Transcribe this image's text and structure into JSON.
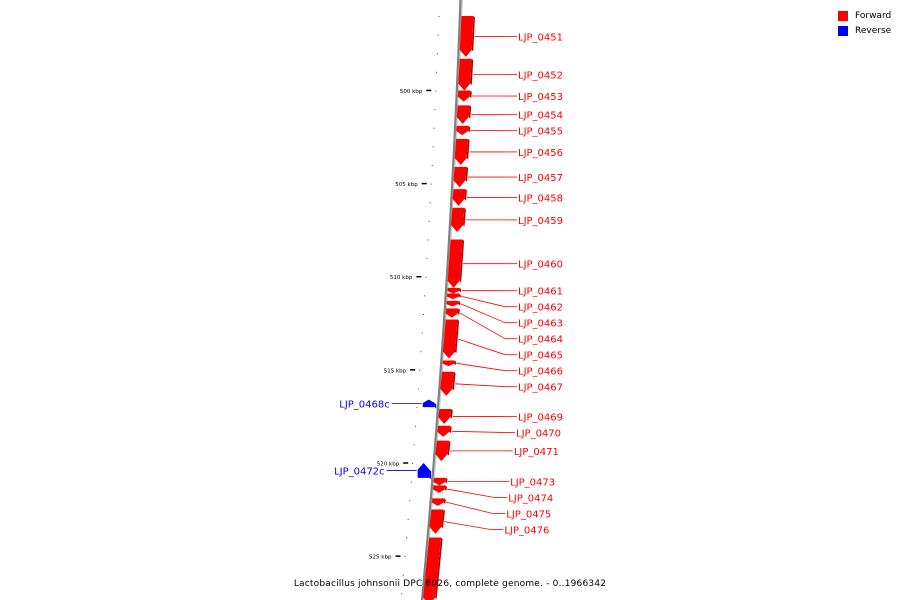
{
  "colors": {
    "forward": "#ff0000",
    "reverse": "#0000ff",
    "backbone": "#808080"
  },
  "legend": {
    "forward_label": "Forward",
    "reverse_label": "Reverse"
  },
  "caption": "Lactobacillus johnsonii DPC 6026, complete genome. - 0..1966342",
  "scale_labels": [
    {
      "text": "500 kbp",
      "kbp": 500
    },
    {
      "text": "505 kbp",
      "kbp": 505
    },
    {
      "text": "510 kbp",
      "kbp": 510
    },
    {
      "text": "515 kbp",
      "kbp": 515
    },
    {
      "text": "520 kbp",
      "kbp": 520
    },
    {
      "text": "525 kbp",
      "kbp": 525
    }
  ],
  "genes": [
    {
      "name": "LJP_0451",
      "strand": "forward",
      "start_kbp": 496.0,
      "end_kbp": 498.2
    },
    {
      "name": "LJP_0452",
      "strand": "forward",
      "start_kbp": 498.3,
      "end_kbp": 500.0
    },
    {
      "name": "LJP_0453",
      "strand": "forward",
      "start_kbp": 500.0,
      "end_kbp": 500.6
    },
    {
      "name": "LJP_0454",
      "strand": "forward",
      "start_kbp": 500.8,
      "end_kbp": 501.8
    },
    {
      "name": "LJP_0455",
      "strand": "forward",
      "start_kbp": 501.9,
      "end_kbp": 502.4
    },
    {
      "name": "LJP_0456",
      "strand": "forward",
      "start_kbp": 502.6,
      "end_kbp": 504.0
    },
    {
      "name": "LJP_0457",
      "strand": "forward",
      "start_kbp": 504.1,
      "end_kbp": 505.2
    },
    {
      "name": "LJP_0458",
      "strand": "forward",
      "start_kbp": 505.3,
      "end_kbp": 506.2
    },
    {
      "name": "LJP_0459",
      "strand": "forward",
      "start_kbp": 506.3,
      "end_kbp": 507.6
    },
    {
      "name": "LJP_0460",
      "strand": "forward",
      "start_kbp": 508.0,
      "end_kbp": 510.6
    },
    {
      "name": "LJP_0461",
      "strand": "forward",
      "start_kbp": 510.6,
      "end_kbp": 510.9
    },
    {
      "name": "LJP_0462",
      "strand": "forward",
      "start_kbp": 510.9,
      "end_kbp": 511.2
    },
    {
      "name": "LJP_0463",
      "strand": "forward",
      "start_kbp": 511.3,
      "end_kbp": 511.6
    },
    {
      "name": "LJP_0464",
      "strand": "forward",
      "start_kbp": 511.7,
      "end_kbp": 512.2
    },
    {
      "name": "LJP_0465",
      "strand": "forward",
      "start_kbp": 512.3,
      "end_kbp": 514.4
    },
    {
      "name": "LJP_0466",
      "strand": "forward",
      "start_kbp": 514.5,
      "end_kbp": 514.8
    },
    {
      "name": "LJP_0467",
      "strand": "forward",
      "start_kbp": 515.1,
      "end_kbp": 516.4
    },
    {
      "name": "LJP_0468c",
      "strand": "reverse",
      "start_kbp": 516.6,
      "end_kbp": 517.0
    },
    {
      "name": "LJP_0469",
      "strand": "forward",
      "start_kbp": 517.1,
      "end_kbp": 517.9
    },
    {
      "name": "LJP_0470",
      "strand": "forward",
      "start_kbp": 518.0,
      "end_kbp": 518.6
    },
    {
      "name": "LJP_0471",
      "strand": "forward",
      "start_kbp": 518.8,
      "end_kbp": 519.9
    },
    {
      "name": "LJP_0472c",
      "strand": "reverse",
      "start_kbp": 520.0,
      "end_kbp": 520.8
    },
    {
      "name": "LJP_0473",
      "strand": "forward",
      "start_kbp": 520.8,
      "end_kbp": 521.2
    },
    {
      "name": "LJP_0474",
      "strand": "forward",
      "start_kbp": 521.2,
      "end_kbp": 521.6
    },
    {
      "name": "LJP_0475",
      "strand": "forward",
      "start_kbp": 521.9,
      "end_kbp": 522.3
    },
    {
      "name": "LJP_0476",
      "strand": "forward",
      "start_kbp": 522.5,
      "end_kbp": 523.8
    },
    {
      "name": "",
      "strand": "forward",
      "start_kbp": 524.0,
      "end_kbp": 527.6
    }
  ]
}
